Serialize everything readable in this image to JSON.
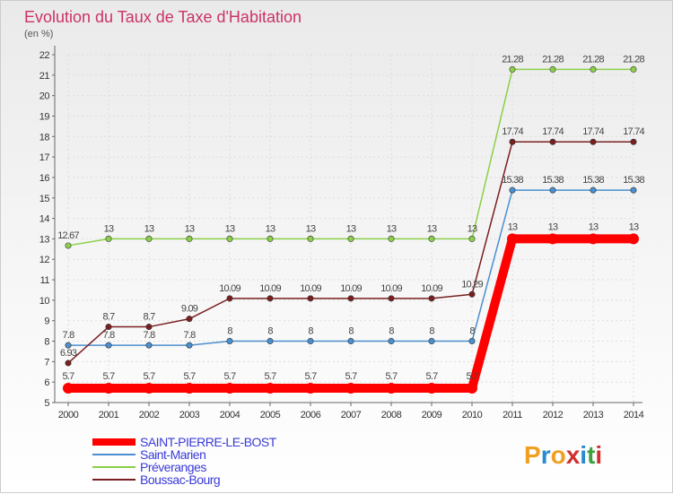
{
  "chart_data": {
    "type": "line",
    "title": "Evolution du Taux de Taxe d'Habitation",
    "subtitle": "(en %)",
    "x": [
      "2000",
      "2001",
      "2002",
      "2003",
      "2004",
      "2005",
      "2006",
      "2007",
      "2008",
      "2009",
      "2010",
      "2011",
      "2012",
      "2013",
      "2014"
    ],
    "ylim": [
      5,
      22
    ],
    "yticks": [
      5,
      6,
      7,
      8,
      9,
      10,
      11,
      12,
      13,
      14,
      15,
      16,
      17,
      18,
      19,
      20,
      21,
      22
    ],
    "grid": true,
    "legend_position": "bottom-left",
    "series": [
      {
        "name": "SAINT-PIERRE-LE-BOST",
        "color": "#ff0000",
        "highlight": true,
        "values": [
          5.7,
          5.7,
          5.7,
          5.7,
          5.7,
          5.7,
          5.7,
          5.7,
          5.7,
          5.7,
          5.7,
          13,
          13,
          13,
          13
        ],
        "labels": [
          "5.7",
          "5.7",
          "5.7",
          "5.7",
          "5.7",
          "5.7",
          "5.7",
          "5.7",
          "5.7",
          "5.7",
          "5.7",
          "13",
          "13",
          "13",
          "13"
        ]
      },
      {
        "name": "Saint-Marien",
        "color": "#4a8fcf",
        "values": [
          7.8,
          7.8,
          7.8,
          7.8,
          8,
          8,
          8,
          8,
          8,
          8,
          8,
          15.38,
          15.38,
          15.38,
          15.38
        ],
        "labels": [
          "7.8",
          "7.8",
          "7.8",
          "7.8",
          "8",
          "8",
          "8",
          "8",
          "8",
          "8",
          "8",
          "15.38",
          "15.38",
          "15.38",
          "15.38"
        ]
      },
      {
        "name": "Préveranges",
        "color": "#8ccf4a",
        "values": [
          12.67,
          13,
          13,
          13,
          13,
          13,
          13,
          13,
          13,
          13,
          13,
          21.28,
          21.28,
          21.28,
          21.28
        ],
        "labels": [
          "12.67",
          "13",
          "13",
          "13",
          "13",
          "13",
          "13",
          "13",
          "13",
          "13",
          "13",
          "21.28",
          "21.28",
          "21.28",
          "21.28"
        ]
      },
      {
        "name": "Boussac-Bourg",
        "color": "#7a1f1f",
        "values": [
          6.93,
          8.7,
          8.7,
          9.09,
          10.09,
          10.09,
          10.09,
          10.09,
          10.09,
          10.09,
          10.29,
          17.74,
          17.74,
          17.74,
          17.74
        ],
        "labels": [
          "6.93",
          "8.7",
          "8.7",
          "9.09",
          "10.09",
          "10.09",
          "10.09",
          "10.09",
          "10.09",
          "10.09",
          "10.29",
          "17.74",
          "17.74",
          "17.74",
          "17.74"
        ]
      }
    ]
  },
  "brand": {
    "letters": [
      "P",
      "r",
      "o",
      "x",
      "i",
      "t",
      "i"
    ],
    "colors": [
      "#f0a020",
      "#2a8ad0",
      "#f0a020",
      "#d03030",
      "#2a8ad0",
      "#40a040",
      "#d03030"
    ]
  }
}
